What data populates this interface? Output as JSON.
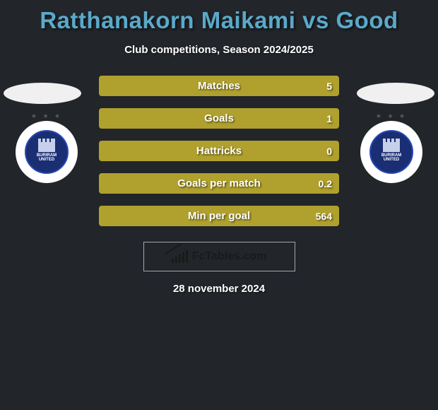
{
  "title_parts": {
    "player": "Ratthanakorn Maikami",
    "vs": "vs",
    "opponent": "Good"
  },
  "title_color": "#5aa9c9",
  "subtitle": "Club competitions, Season 2024/2025",
  "crest": {
    "line1": "BURIRAM",
    "line2": "UNITED"
  },
  "stats": {
    "bar_color": "#b0a02d",
    "bg_color": "#2b2e33",
    "rows": [
      {
        "label": "Matches",
        "left": "",
        "right": "5",
        "left_pct": 0,
        "right_pct": 100
      },
      {
        "label": "Goals",
        "left": "",
        "right": "1",
        "left_pct": 0,
        "right_pct": 100
      },
      {
        "label": "Hattricks",
        "left": "",
        "right": "0",
        "left_pct": 0,
        "right_pct": 100
      },
      {
        "label": "Goals per match",
        "left": "",
        "right": "0.2",
        "left_pct": 0,
        "right_pct": 100
      },
      {
        "label": "Min per goal",
        "left": "",
        "right": "564",
        "left_pct": 0,
        "right_pct": 100
      }
    ]
  },
  "footer_brand": "FcTables.com",
  "date": "28 november 2024"
}
